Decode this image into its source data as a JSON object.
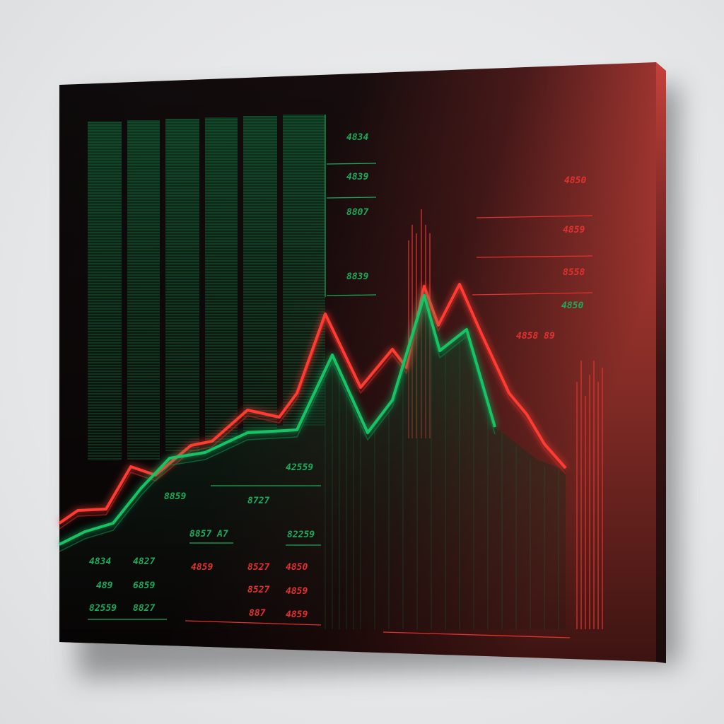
{
  "colors": {
    "green": "#1fa85a",
    "red": "#e0322e",
    "panel_dark": "#140c0d",
    "panel_red": "#c8423a"
  },
  "labels": {
    "green_right_col": [
      "4834",
      "4839",
      "8807",
      "8839"
    ],
    "red_right_col": [
      "4850",
      "4859",
      "8558",
      "4850",
      "4858 89"
    ],
    "mid_green": [
      "42559",
      "8727",
      "82259",
      "8857 A7"
    ],
    "bottom_green": [
      "4834",
      "4827",
      "489",
      "6859",
      "82559",
      "8827"
    ],
    "bottom_red": [
      "4859",
      "8527",
      "4850",
      "8527",
      "4859",
      "887",
      "4859"
    ]
  }
}
